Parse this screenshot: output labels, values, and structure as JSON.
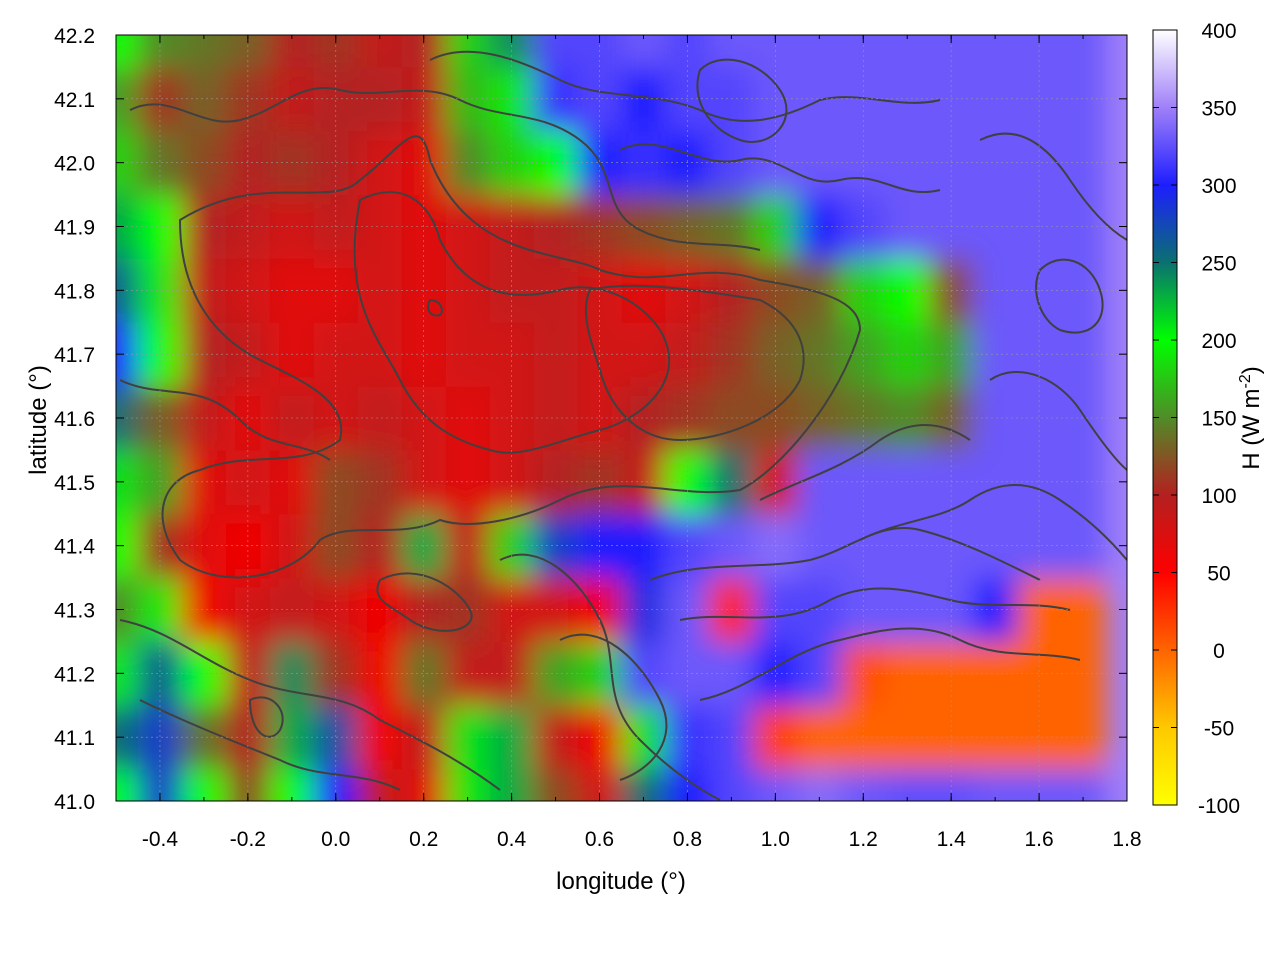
{
  "chart_data": {
    "type": "heatmap",
    "title": "",
    "xlabel": "longitude (°)",
    "ylabel": "latitude (°)",
    "colorbar_label": {
      "main": "H (W m",
      "sup": "-2",
      "close": ")"
    },
    "xlim": [
      -0.5,
      1.8
    ],
    "ylim": [
      41.0,
      42.2
    ],
    "clim": [
      -100,
      400
    ],
    "x_ticks": [
      {
        "value": -0.4,
        "label": "-0.4"
      },
      {
        "value": -0.2,
        "label": "-0.2"
      },
      {
        "value": 0.0,
        "label": "0.0"
      },
      {
        "value": 0.2,
        "label": "0.2"
      },
      {
        "value": 0.4,
        "label": "0.4"
      },
      {
        "value": 0.6,
        "label": "0.6"
      },
      {
        "value": 0.8,
        "label": "0.8"
      },
      {
        "value": 1.0,
        "label": "1.0"
      },
      {
        "value": 1.2,
        "label": "1.2"
      },
      {
        "value": 1.4,
        "label": "1.4"
      },
      {
        "value": 1.6,
        "label": "1.6"
      },
      {
        "value": 1.8,
        "label": "1.8"
      }
    ],
    "y_ticks": [
      {
        "value": 41.0,
        "label": "41.0"
      },
      {
        "value": 41.1,
        "label": "41.1"
      },
      {
        "value": 41.2,
        "label": "41.2"
      },
      {
        "value": 41.3,
        "label": "41.3"
      },
      {
        "value": 41.4,
        "label": "41.4"
      },
      {
        "value": 41.5,
        "label": "41.5"
      },
      {
        "value": 41.6,
        "label": "41.6"
      },
      {
        "value": 41.7,
        "label": "41.7"
      },
      {
        "value": 41.8,
        "label": "41.8"
      },
      {
        "value": 41.9,
        "label": "41.9"
      },
      {
        "value": 42.0,
        "label": "42.0"
      },
      {
        "value": 42.1,
        "label": "42.1"
      },
      {
        "value": 42.2,
        "label": "42.2"
      }
    ],
    "colorbar_ticks": [
      {
        "value": 400,
        "label": "400"
      },
      {
        "value": 350,
        "label": "350"
      },
      {
        "value": 300,
        "label": "300"
      },
      {
        "value": 250,
        "label": "250"
      },
      {
        "value": 200,
        "label": "200"
      },
      {
        "value": 150,
        "label": "150"
      },
      {
        "value": 100,
        "label": "100"
      },
      {
        "value": 50,
        "label": "50"
      },
      {
        "value": 0,
        "label": "0"
      },
      {
        "value": -50,
        "label": "-50"
      },
      {
        "value": -100,
        "label": "-100"
      }
    ],
    "colormap": [
      {
        "value": -100,
        "color": "#ffff00"
      },
      {
        "value": -50,
        "color": "#ffc800"
      },
      {
        "value": 0,
        "color": "#ff6400"
      },
      {
        "value": 50,
        "color": "#ff0000"
      },
      {
        "value": 100,
        "color": "#b42020"
      },
      {
        "value": 150,
        "color": "#508c28"
      },
      {
        "value": 200,
        "color": "#00ff00"
      },
      {
        "value": 250,
        "color": "#0a7070"
      },
      {
        "value": 300,
        "color": "#1e1eff"
      },
      {
        "value": 350,
        "color": "#a080f8"
      },
      {
        "value": 400,
        "color": "#ffffff"
      }
    ],
    "contour_color": "#404040",
    "grid": true,
    "heatmap": {
      "x_start": -0.5,
      "x_step": 0.1,
      "y_start": 41.0,
      "y_step": 0.1,
      "rows_bottom_to_top": [
        [
          200,
          280,
          200,
          120,
          200,
          300,
          90,
          70,
          190,
          230,
          120,
          80,
          250,
          300,
          320,
          330,
          340,
          330,
          325,
          325,
          330,
          330,
          330
        ],
        [
          250,
          280,
          140,
          100,
          230,
          270,
          60,
          90,
          210,
          230,
          90,
          60,
          210,
          310,
          320,
          20,
          0,
          0,
          0,
          0,
          0,
          0,
          0
        ],
        [
          190,
          260,
          200,
          90,
          240,
          110,
          60,
          140,
          90,
          90,
          160,
          180,
          320,
          330,
          330,
          300,
          320,
          10,
          0,
          0,
          0,
          0,
          0
        ],
        [
          150,
          190,
          60,
          80,
          90,
          80,
          60,
          100,
          110,
          80,
          80,
          60,
          290,
          330,
          30,
          320,
          320,
          330,
          330,
          330,
          300,
          0,
          0
        ],
        [
          200,
          110,
          70,
          60,
          80,
          120,
          100,
          230,
          90,
          180,
          280,
          300,
          300,
          320,
          330,
          340,
          330,
          330,
          330,
          330,
          330,
          330,
          330
        ],
        [
          210,
          160,
          70,
          80,
          70,
          120,
          110,
          80,
          70,
          80,
          100,
          110,
          90,
          200,
          250,
          80,
          330,
          330,
          330,
          330,
          330,
          330,
          330
        ],
        [
          250,
          130,
          90,
          70,
          90,
          80,
          90,
          80,
          70,
          80,
          90,
          80,
          100,
          110,
          120,
          120,
          130,
          140,
          150,
          130,
          330,
          330,
          330
        ],
        [
          300,
          200,
          100,
          90,
          70,
          80,
          80,
          70,
          80,
          80,
          90,
          80,
          80,
          90,
          110,
          130,
          140,
          160,
          180,
          160,
          330,
          330,
          330
        ],
        [
          260,
          190,
          90,
          80,
          70,
          70,
          80,
          70,
          80,
          90,
          90,
          80,
          70,
          80,
          100,
          120,
          130,
          180,
          200,
          120,
          330,
          330,
          330
        ],
        [
          230,
          200,
          100,
          90,
          80,
          90,
          80,
          70,
          80,
          90,
          100,
          110,
          120,
          130,
          140,
          180,
          300,
          320,
          330,
          330,
          330,
          330,
          330
        ],
        [
          180,
          140,
          120,
          100,
          110,
          100,
          80,
          70,
          150,
          180,
          200,
          300,
          310,
          300,
          320,
          330,
          330,
          330,
          330,
          330,
          330,
          330,
          330
        ],
        [
          160,
          110,
          130,
          110,
          90,
          100,
          100,
          90,
          170,
          190,
          310,
          320,
          300,
          320,
          320,
          330,
          330,
          330,
          330,
          330,
          330,
          330,
          330
        ],
        [
          200,
          150,
          140,
          130,
          100,
          110,
          90,
          100,
          180,
          240,
          320,
          320,
          330,
          320,
          330,
          330,
          330,
          330,
          330,
          330,
          330,
          330,
          330
        ]
      ]
    }
  }
}
